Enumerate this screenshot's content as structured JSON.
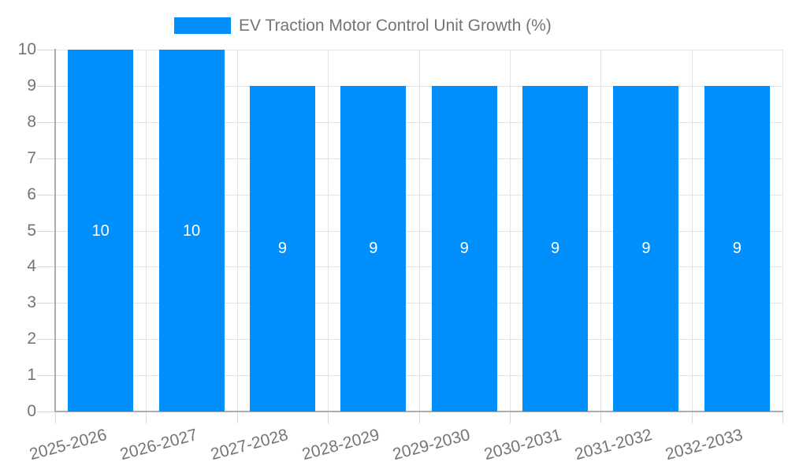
{
  "chart_data": {
    "type": "bar",
    "title": "",
    "legend_label": "EV Traction Motor Control Unit Growth (%)",
    "legend_position": "top",
    "categories": [
      "2025-2026",
      "2026-2027",
      "2027-2028",
      "2028-2029",
      "2029-2030",
      "2030-2031",
      "2031-2032",
      "2032-2033"
    ],
    "values": [
      10,
      10,
      9,
      9,
      9,
      9,
      9,
      9
    ],
    "bar_labels": [
      "10",
      "10",
      "9",
      "9",
      "9",
      "9",
      "9",
      "9"
    ],
    "xlabel": "",
    "ylabel": "",
    "ylim": [
      0,
      10
    ],
    "ytick_step": 1,
    "grid": true,
    "colors": {
      "bar": "#008FFB",
      "grid": "#e4e4e4",
      "tick": "#d8d8d8",
      "axis": "#adadad",
      "text": "#757575",
      "bar_label": "#ffffff",
      "background": "#ffffff"
    }
  }
}
